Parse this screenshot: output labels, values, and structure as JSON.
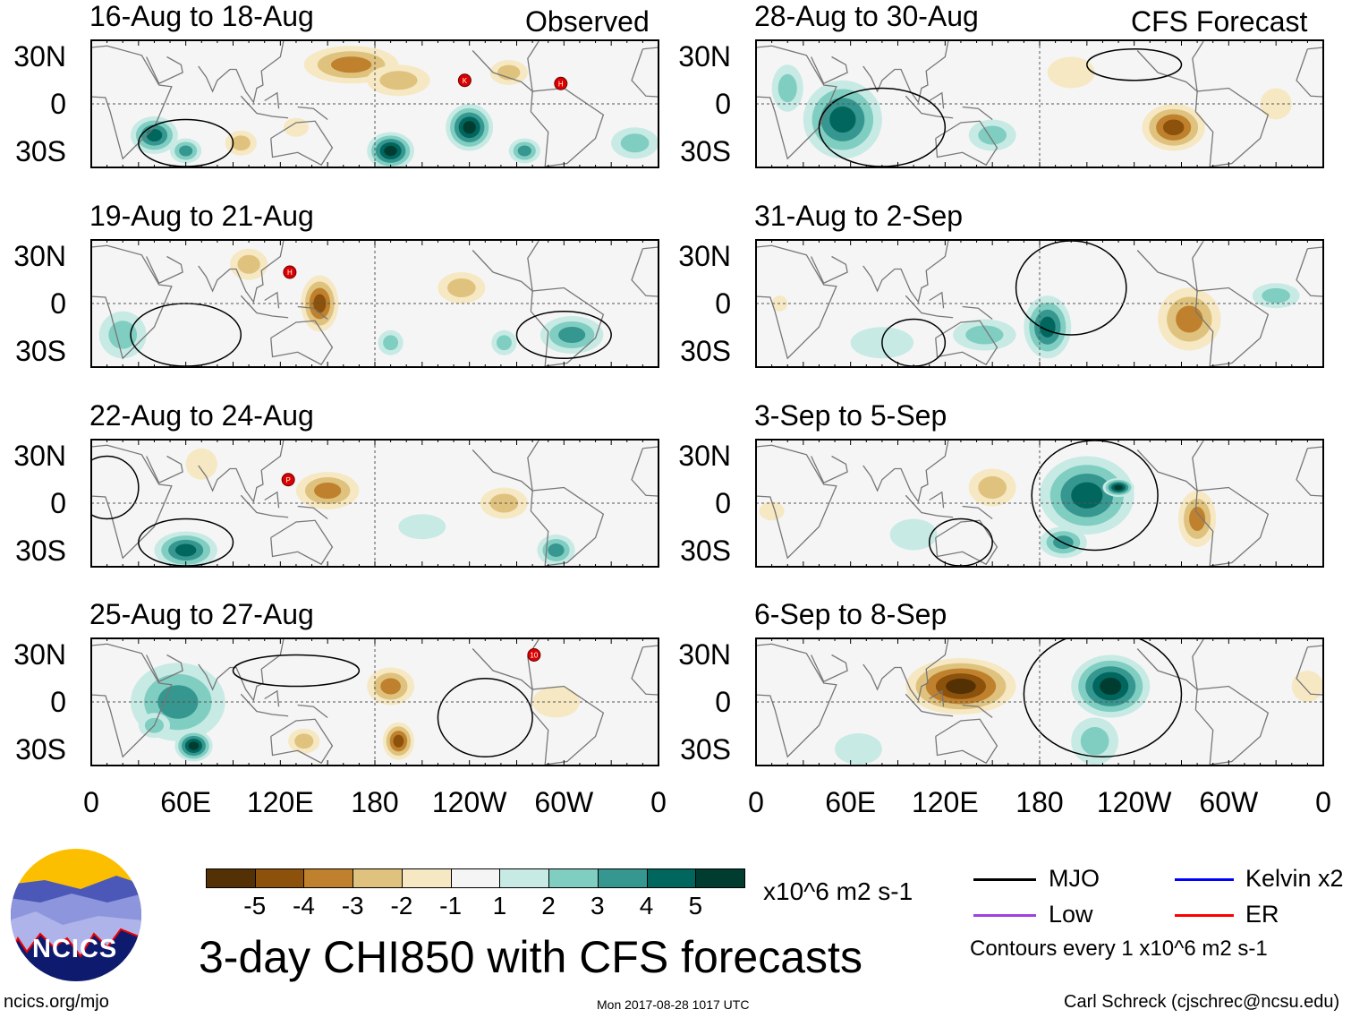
{
  "header": {
    "observed_label": "Observed",
    "forecast_label": "CFS Forecast"
  },
  "panels": [
    {
      "title": "16-Aug to 18-Aug",
      "group": "observed",
      "storms": [
        {
          "label": "K",
          "lon": 237,
          "lat": 15
        },
        {
          "label": "H",
          "lon": 298,
          "lat": 13
        }
      ]
    },
    {
      "title": "19-Aug to 21-Aug",
      "group": "observed",
      "storms": [
        {
          "label": "H",
          "lon": 126,
          "lat": 20
        }
      ]
    },
    {
      "title": "22-Aug to 24-Aug",
      "group": "observed",
      "storms": [
        {
          "label": "P",
          "lon": 125,
          "lat": 15
        }
      ]
    },
    {
      "title": "25-Aug to 27-Aug",
      "group": "observed",
      "storms": [
        {
          "label": "10",
          "lon": 281,
          "lat": 30
        }
      ]
    },
    {
      "title": "28-Aug to 30-Aug",
      "group": "forecast",
      "storms": []
    },
    {
      "title": "31-Aug to 2-Sep",
      "group": "forecast",
      "storms": []
    },
    {
      "title": "3-Sep to 5-Sep",
      "group": "forecast",
      "storms": []
    },
    {
      "title": "6-Sep to 8-Sep",
      "group": "forecast",
      "storms": []
    }
  ],
  "lat_labels": [
    "30N",
    "0",
    "30S"
  ],
  "lon_labels": [
    "0",
    "60E",
    "120E",
    "180",
    "120W",
    "60W",
    "0"
  ],
  "colorbar": {
    "colors": [
      "#543005",
      "#8c510a",
      "#bf812d",
      "#dfc27d",
      "#f6e8c3",
      "#f5f5f5",
      "#c7eae5",
      "#80cdc1",
      "#35978f",
      "#01665e",
      "#003c30"
    ],
    "labels": [
      "-5",
      "-4",
      "-3",
      "-2",
      "-1",
      "1",
      "2",
      "3",
      "4",
      "5"
    ],
    "units": "x10^6 m2 s-1"
  },
  "title": "3-day CHI850 with CFS forecasts",
  "legend": {
    "items": [
      {
        "label": "MJO",
        "color": "#000000"
      },
      {
        "label": "Kelvin x2",
        "color": "#0000ff"
      },
      {
        "label": "Low",
        "color": "#a040e0"
      },
      {
        "label": "ER",
        "color": "#ff0000"
      }
    ],
    "note": "Contours every 1 x10^6 m2 s-1"
  },
  "logo": {
    "text": "NCICS"
  },
  "footer": {
    "url": "ncics.org/mjo",
    "timestamp": "Mon 2017-08-28 1017 UTC",
    "author": "Carl Schreck (cjschrec@ncsu.edu)"
  }
}
